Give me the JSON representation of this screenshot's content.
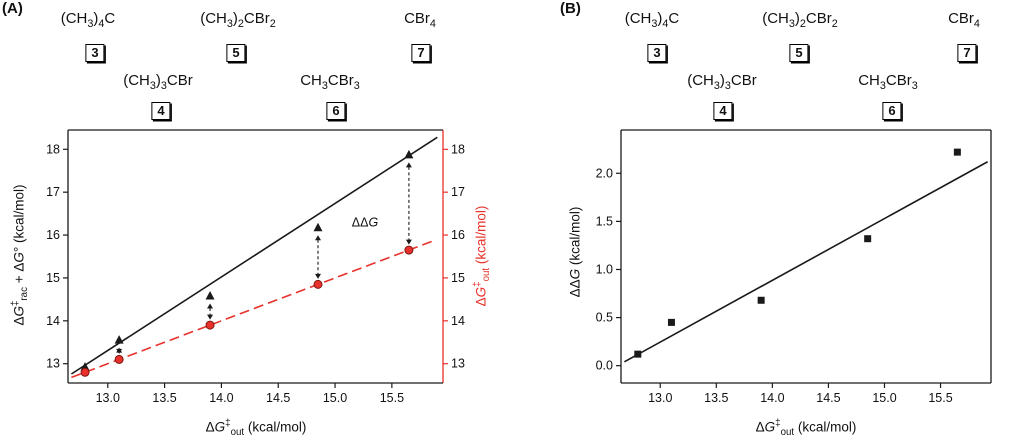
{
  "figure": {
    "panel_a_label": "(A)",
    "panel_b_label": "(B)"
  },
  "compounds": [
    {
      "formula": "(CH_3_)_4_C",
      "number": "3"
    },
    {
      "formula": "(CH_3_)_3_CBr",
      "number": "4"
    },
    {
      "formula": "(CH_3_)_2_CBr_2_",
      "number": "5"
    },
    {
      "formula": "CH_3_CBr_3_",
      "number": "6"
    },
    {
      "formula": "CBr_4_",
      "number": "7"
    }
  ],
  "chart_data": [
    {
      "type": "scatter",
      "title": "",
      "xlabel": "Δ*G*^‡^_out_ (kcal/mol)",
      "ylabel": "Δ*G*^‡^_rac_ + Δ*G*° (kcal/mol)",
      "ylabel_right": "Δ*G*^‡^_out_ (kcal/mol)",
      "xlim": [
        12.65,
        15.95
      ],
      "ylim": [
        12.55,
        18.45
      ],
      "xtick_labels": [
        "13.0",
        "13.5",
        "14.0",
        "14.5",
        "15.0",
        "15.5"
      ],
      "ytick_labels": [
        "13",
        "14",
        "15",
        "16",
        "17",
        "18"
      ],
      "ytick_right_labels": [
        "13",
        "14",
        "15",
        "16",
        "17",
        "18"
      ],
      "grid": false,
      "spines": {
        "left": "#1a1a1a",
        "right": "#e8312a",
        "top": "#1a1a1a",
        "bottom": "#1a1a1a"
      },
      "series": [
        {
          "name": "ΔG‡rac + ΔG°",
          "marker": "triangle",
          "color": "#1a1a1a",
          "line": {
            "type": "solid",
            "x1": 12.68,
            "y1": 12.76,
            "x2": 15.9,
            "y2": 18.28
          },
          "x": [
            12.8,
            13.1,
            13.9,
            14.85,
            15.65
          ],
          "y": [
            12.92,
            13.55,
            14.58,
            16.17,
            17.87
          ]
        },
        {
          "name": "ΔG‡out",
          "marker": "circle",
          "color": "#e8312a",
          "marker_stroke": "#7e150f",
          "line": {
            "type": "dashed",
            "x1": 12.68,
            "y1": 12.68,
            "x2": 15.88,
            "y2": 15.88
          },
          "x": [
            12.8,
            13.1,
            13.9,
            14.85,
            15.65
          ],
          "y": [
            12.8,
            13.1,
            13.9,
            14.85,
            15.65
          ]
        }
      ],
      "arrows": {
        "from_series": 1,
        "to_series": 0,
        "indices": [
          1,
          2,
          3,
          4
        ],
        "color": "#1a1a1a"
      },
      "annotations": [
        {
          "text": "ΔΔ*G*",
          "x": 15.38,
          "y": 16.2,
          "anchor": "end"
        }
      ]
    },
    {
      "type": "scatter",
      "title": "",
      "xlabel": "Δ*G*^‡^_out_ (kcal/mol)",
      "ylabel": "ΔΔ*G* (kcal/mol)",
      "xlim": [
        12.65,
        15.95
      ],
      "ylim": [
        -0.18,
        2.45
      ],
      "xtick_labels": [
        "13.0",
        "13.5",
        "14.0",
        "14.5",
        "15.0",
        "15.5"
      ],
      "ytick_labels": [
        "0.0",
        "0.5",
        "1.0",
        "1.5",
        "2.0"
      ],
      "grid": false,
      "spines": {
        "left": "#1a1a1a",
        "right": "#1a1a1a",
        "top": "#1a1a1a",
        "bottom": "#1a1a1a"
      },
      "series": [
        {
          "name": "ΔΔG",
          "marker": "square",
          "color": "#1a1a1a",
          "line": {
            "type": "solid",
            "x1": 12.68,
            "y1": 0.04,
            "x2": 15.92,
            "y2": 2.12
          },
          "x": [
            12.8,
            13.1,
            13.9,
            14.85,
            15.65
          ],
          "y": [
            0.12,
            0.45,
            0.68,
            1.32,
            2.22
          ]
        }
      ],
      "annotations": []
    }
  ]
}
